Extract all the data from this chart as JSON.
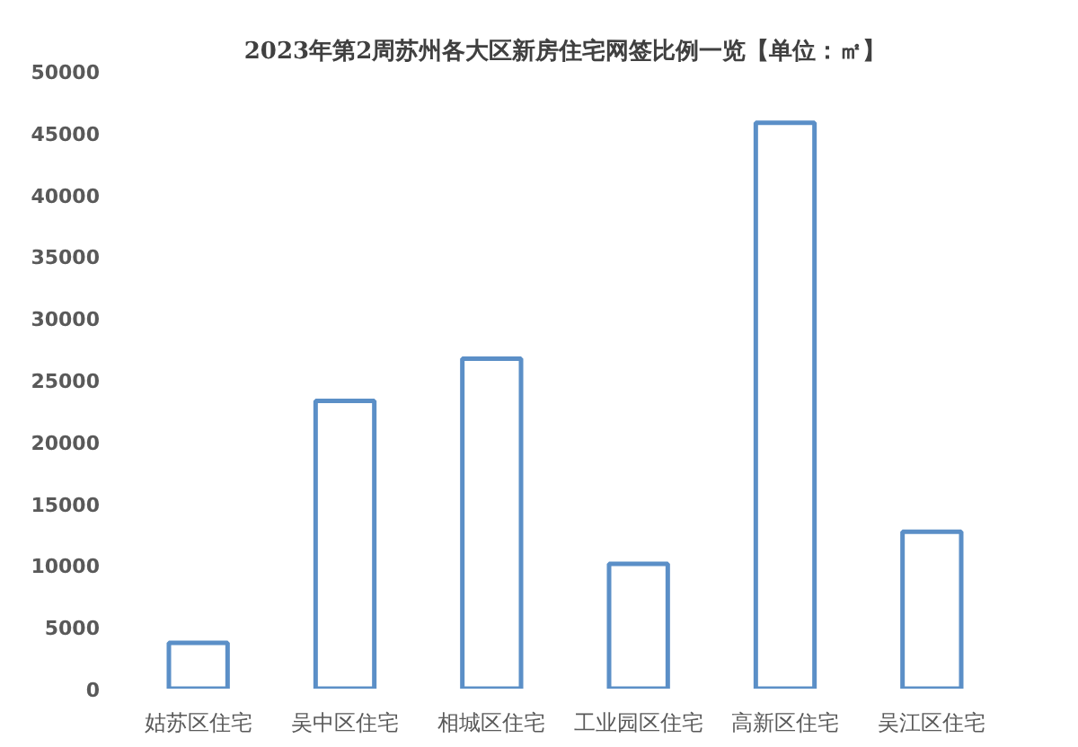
{
  "chart_data": {
    "type": "bar",
    "title": "2023年第2周苏州各大区新房住宅网签比例一览【单位：㎡】",
    "categories": [
      "姑苏区住宅",
      "吴中区住宅",
      "相城区住宅",
      "工业园区住宅",
      "高新区住宅",
      "吴江区住宅"
    ],
    "values": [
      3700,
      23300,
      26700,
      10100,
      45800,
      12700
    ],
    "color": "#5b8fc7",
    "ylim": [
      0,
      50000
    ],
    "yticks": [
      0,
      5000,
      10000,
      15000,
      20000,
      25000,
      30000,
      35000,
      40000,
      45000,
      50000
    ]
  }
}
